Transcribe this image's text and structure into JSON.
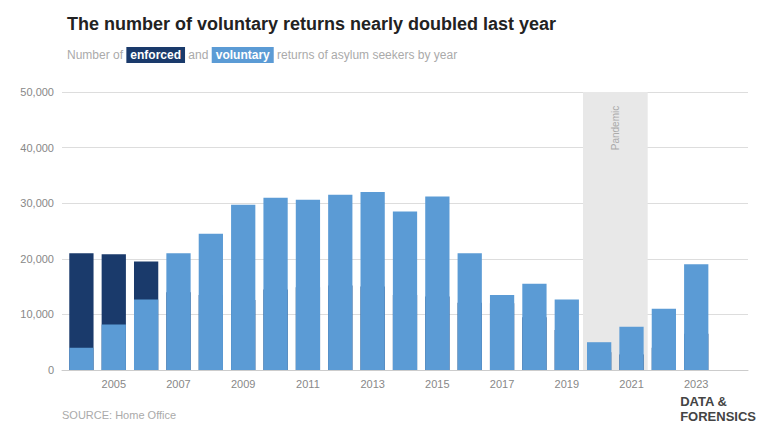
{
  "chart_data": {
    "type": "bar",
    "title": "The number of voluntary returns nearly doubled last year",
    "subtitle": "Number of enforced and voluntary returns of asylum seekers by year",
    "x": [
      2004,
      2005,
      2006,
      2007,
      2008,
      2009,
      2010,
      2011,
      2012,
      2013,
      2014,
      2015,
      2016,
      2017,
      2018,
      2019,
      2020,
      2021,
      2022,
      2023
    ],
    "series": [
      {
        "name": "enforced",
        "color": "#1a3a6b",
        "values": [
          21000,
          20800,
          19500,
          14000,
          13500,
          12600,
          14500,
          14900,
          15200,
          15000,
          13500,
          13200,
          12100,
          12000,
          9500,
          7200,
          3200,
          2800,
          4000,
          6500
        ]
      },
      {
        "name": "voluntary",
        "color": "#5b9bd5",
        "values": [
          4000,
          8200,
          12700,
          21000,
          24500,
          29700,
          31000,
          30600,
          31500,
          32000,
          28500,
          31200,
          21000,
          13500,
          15500,
          12700,
          5000,
          7800,
          11000,
          19000
        ]
      }
    ],
    "stacked": true,
    "xlim": [
      2003.4,
      2024.6
    ],
    "xticks": [
      2005,
      2007,
      2009,
      2011,
      2013,
      2015,
      2017,
      2019,
      2021,
      2023
    ],
    "ylim": [
      0,
      50000
    ],
    "yticks": [
      0,
      {
        "value": 10000,
        "label": "10,000"
      },
      {
        "value": 20000,
        "label": "20,000"
      },
      {
        "value": 30000,
        "label": "30,000"
      },
      {
        "value": 40000,
        "label": "40,000"
      },
      {
        "value": 50000,
        "label": "50,000"
      }
    ],
    "grid": true,
    "pandemic": {
      "start": 2020,
      "end": 2021,
      "label": "Pandemic",
      "color": "#e8e8e8"
    },
    "source": "SOURCE: Home Office",
    "watermark": [
      "DATA &",
      "FORENSICS"
    ]
  }
}
